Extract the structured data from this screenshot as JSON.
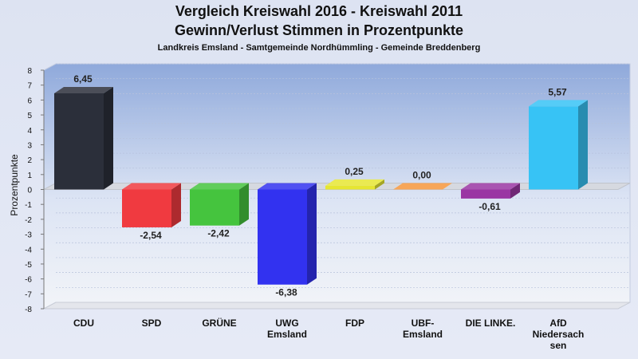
{
  "header": {
    "title_line1": "Vergleich Kreiswahl 2016 - Kreiswahl 2011",
    "title_line2": "Gewinn/Verlust Stimmen in Prozentpunkte",
    "subtitle": "Landkreis Emsland - Samtgemeinde Nordhümmling - Gemeinde Breddenberg"
  },
  "chart_data": {
    "type": "bar",
    "title": "Vergleich Kreiswahl 2016 - Kreiswahl 2011 / Gewinn/Verlust Stimmen in Prozentpunkte",
    "subtitle": "Landkreis Emsland - Samtgemeinde Nordhümmling - Gemeinde Breddenberg",
    "xlabel": "",
    "ylabel": "Prozentpunkte",
    "ylim": [
      -8,
      8
    ],
    "yticks": [
      8,
      7,
      6,
      5,
      4,
      3,
      2,
      1,
      0,
      -1,
      -2,
      -3,
      -4,
      -5,
      -6,
      -7,
      -8
    ],
    "categories": [
      [
        "CDU"
      ],
      [
        "SPD"
      ],
      [
        "GRÜNE"
      ],
      [
        "UWG",
        "Emsland"
      ],
      [
        "FDP"
      ],
      [
        "UBF-",
        "Emsland"
      ],
      [
        "DIE LINKE."
      ],
      [
        "AfD",
        "Niedersach",
        "sen"
      ]
    ],
    "values": [
      6.45,
      -2.54,
      -2.42,
      -6.38,
      0.25,
      0.0,
      -0.61,
      5.57
    ],
    "value_labels": [
      "6,45",
      "-2,54",
      "-2,42",
      "-6,38",
      "0,25",
      "0,00",
      "-0,61",
      "5,57"
    ],
    "colors": [
      "#2b2f3a",
      "#f03a40",
      "#45c43e",
      "#3232f0",
      "#e6e632",
      "#f5963c",
      "#9a36a3",
      "#37c3f5"
    ]
  }
}
